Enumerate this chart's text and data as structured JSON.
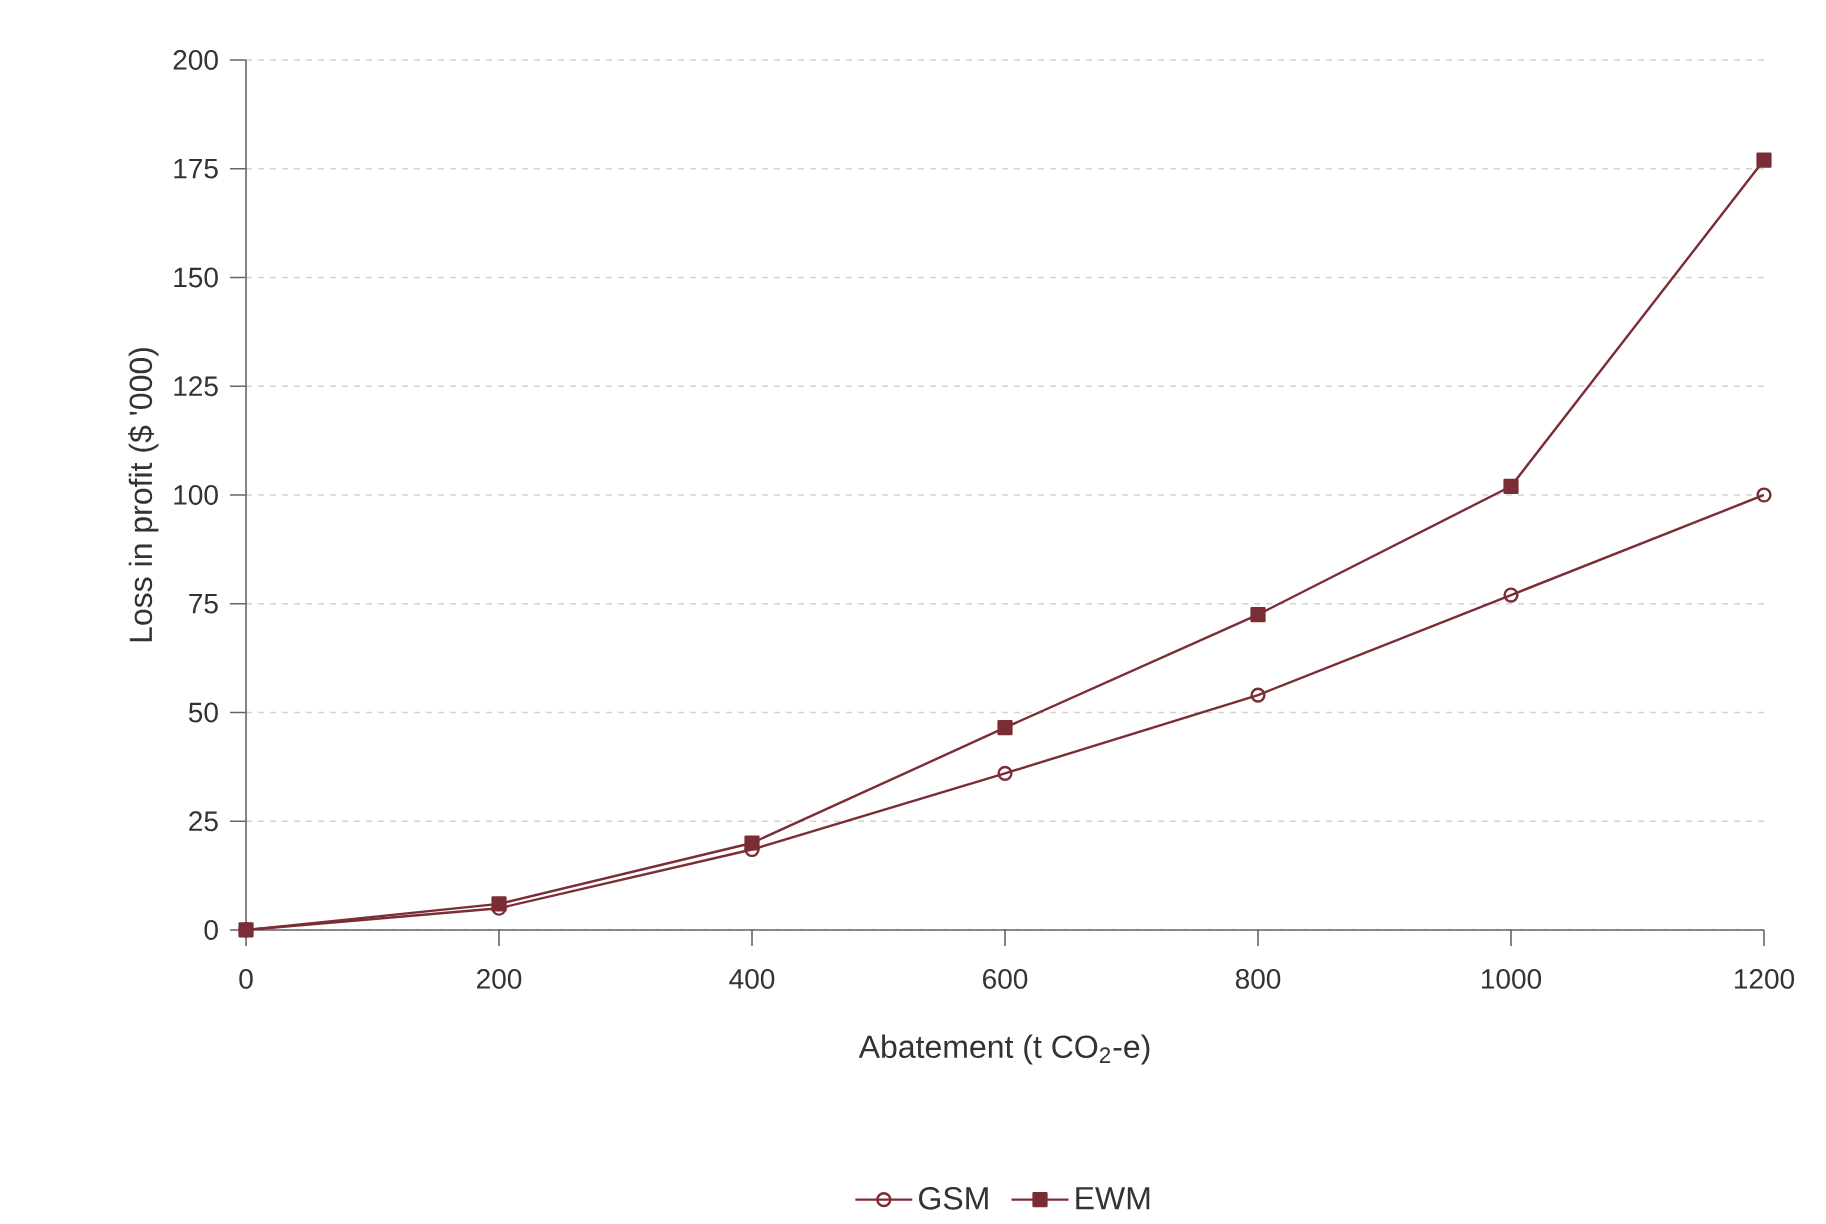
{
  "chart_data": {
    "type": "line",
    "xlabel": "Abatement (t CO$_{2}$-e)",
    "ylabel": "Loss in profit ($ '000)",
    "x": [
      0,
      200,
      400,
      600,
      800,
      1000,
      1200
    ],
    "series": [
      {
        "name": "GSM",
        "color": "#7b2d35",
        "marker": "circle",
        "values": [
          0,
          5,
          18.5,
          36,
          54,
          77,
          100
        ]
      },
      {
        "name": "EWM",
        "color": "#7b2d35",
        "marker": "square",
        "values": [
          0,
          6,
          20,
          46.5,
          72.5,
          102,
          177
        ]
      }
    ],
    "xlim": [
      0,
      1200
    ],
    "ylim": [
      0,
      200
    ],
    "xticks": [
      0,
      200,
      400,
      600,
      800,
      1000,
      1200
    ],
    "yticks": [
      0,
      25,
      50,
      75,
      100,
      125,
      150,
      175,
      200
    ],
    "grid": "y",
    "legend": "bottom",
    "line_style": "solid"
  }
}
